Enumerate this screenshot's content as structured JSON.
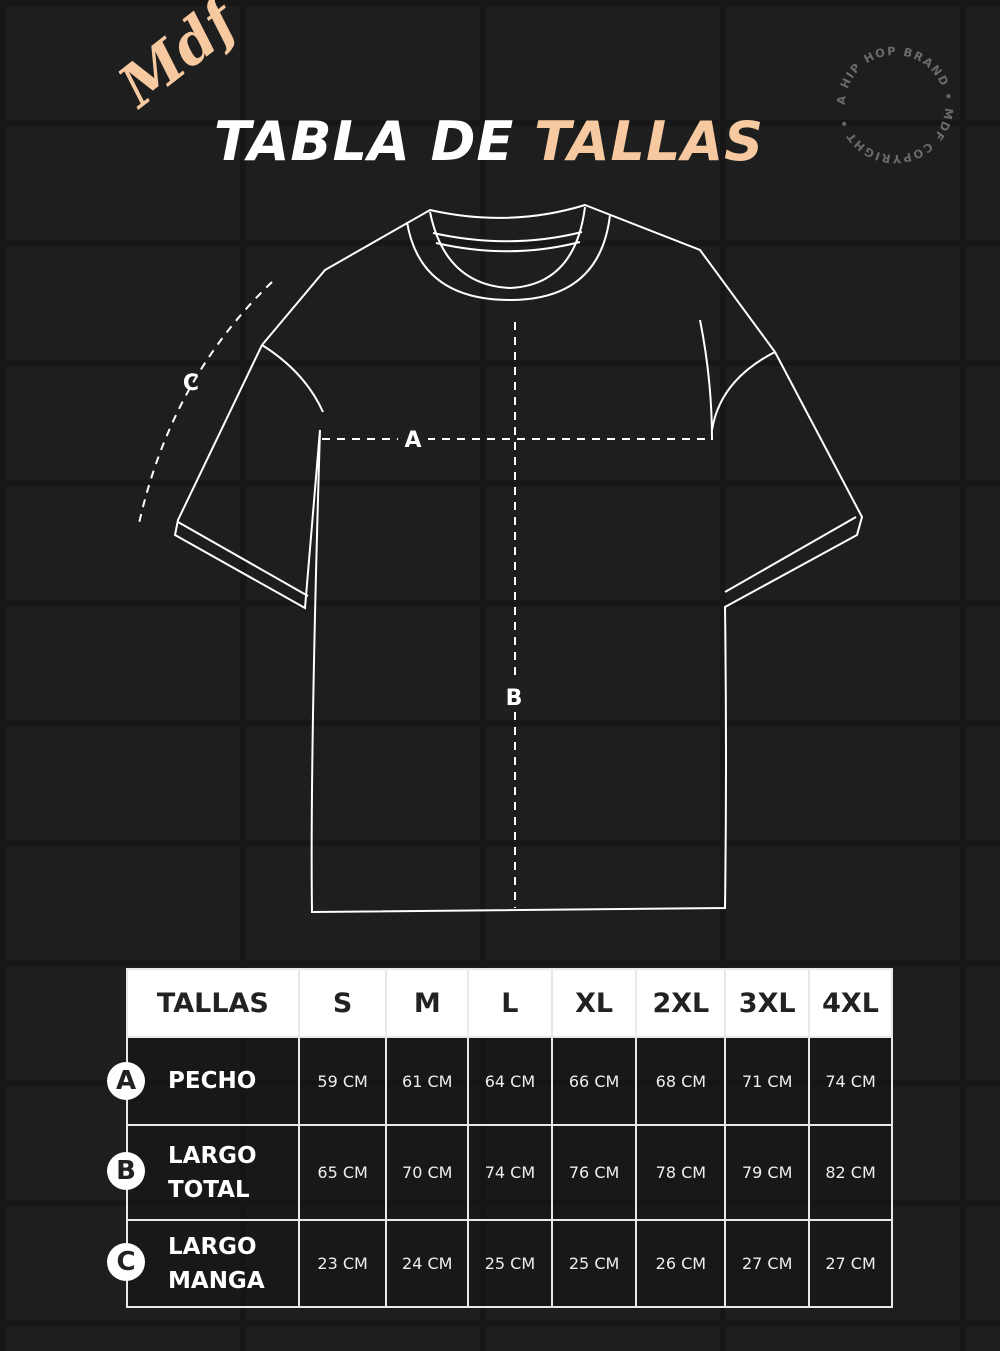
{
  "header": {
    "logo": "Mdf",
    "title_part1": "TABLA DE",
    "title_part2": "TALLAS",
    "stamp_text": "A HIP HOP BRAND • MDF COPYRIGHT •"
  },
  "colors": {
    "accent": "#f7c9a0",
    "background": "#1f1f1f",
    "line": "#ffffff"
  },
  "diagram": {
    "label_a": "A",
    "label_b": "B",
    "label_c": "C"
  },
  "table": {
    "header": [
      "TALLAS",
      "S",
      "M",
      "L",
      "XL",
      "2XL",
      "3XL",
      "4XL"
    ],
    "rows": [
      {
        "badge": "A",
        "label_1": "PECHO",
        "label_2": "",
        "values": [
          "59 CM",
          "61 CM",
          "64 CM",
          "66 CM",
          "68 CM",
          "71 CM",
          "74 CM"
        ]
      },
      {
        "badge": "B",
        "label_1": "LARGO",
        "label_2": "TOTAL",
        "values": [
          "65 CM",
          "70 CM",
          "74 CM",
          "76 CM",
          "78 CM",
          "79 CM",
          "82 CM"
        ]
      },
      {
        "badge": "C",
        "label_1": "LARGO",
        "label_2": "MANGA",
        "values": [
          "23 CM",
          "24 CM",
          "25 CM",
          "25 CM",
          "26 CM",
          "27 CM",
          "27 CM"
        ]
      }
    ]
  }
}
